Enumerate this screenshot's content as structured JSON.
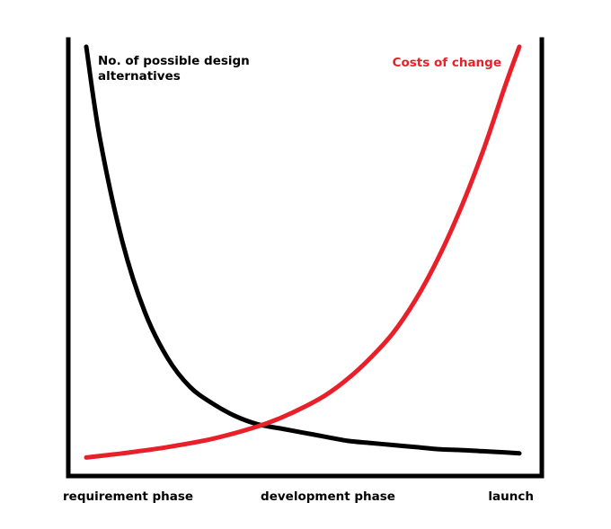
{
  "chart_data": {
    "type": "line",
    "title": "",
    "xlabel": "",
    "ylabel": "",
    "x_ticks": [
      "requirement phase",
      "development phase",
      "launch"
    ],
    "xlim": [
      0,
      1
    ],
    "ylim": [
      0,
      1
    ],
    "grid": false,
    "series": [
      {
        "name": "No. of possible design\nalternatives",
        "name_lines": [
          "No. of possible design",
          "alternatives"
        ],
        "color": "#000000",
        "x": [
          0.02,
          0.05,
          0.1,
          0.15,
          0.2,
          0.25,
          0.3,
          0.35,
          0.4,
          0.45,
          0.5,
          0.55,
          0.6,
          0.65,
          0.7,
          0.75,
          0.8,
          0.85,
          0.9,
          0.95,
          0.98
        ],
        "y": [
          1.0,
          0.78,
          0.53,
          0.36,
          0.25,
          0.18,
          0.14,
          0.11,
          0.09,
          0.08,
          0.07,
          0.06,
          0.05,
          0.045,
          0.04,
          0.035,
          0.03,
          0.028,
          0.025,
          0.022,
          0.02
        ]
      },
      {
        "name": "Costs of change",
        "name_lines": [
          "Costs of change"
        ],
        "color": "#e8202a",
        "x": [
          0.02,
          0.1,
          0.2,
          0.3,
          0.4,
          0.45,
          0.5,
          0.55,
          0.6,
          0.65,
          0.7,
          0.75,
          0.8,
          0.85,
          0.9,
          0.95,
          0.98
        ],
        "y": [
          0.01,
          0.02,
          0.035,
          0.055,
          0.085,
          0.105,
          0.13,
          0.16,
          0.2,
          0.25,
          0.31,
          0.39,
          0.49,
          0.61,
          0.75,
          0.91,
          1.0
        ]
      }
    ]
  }
}
